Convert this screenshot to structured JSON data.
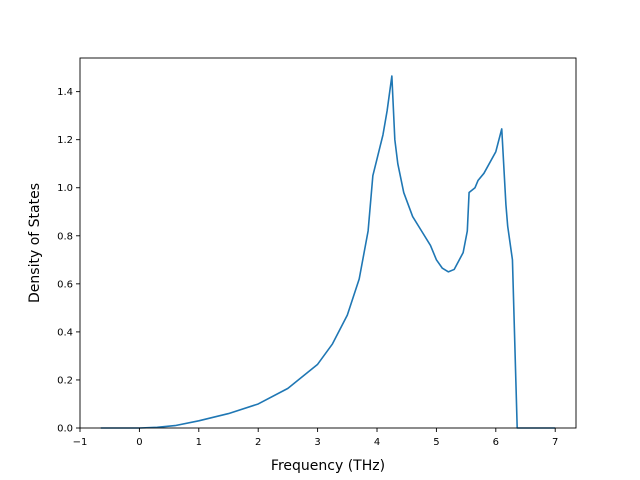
{
  "chart_data": {
    "type": "line",
    "title": "",
    "xlabel": "Frequency (THz)",
    "ylabel": "Density of States",
    "xlim": [
      -1.0,
      7.35
    ],
    "ylim": [
      0.0,
      1.54
    ],
    "grid": false,
    "legend": "none",
    "x_ticks": [
      "−1",
      "0",
      "1",
      "2",
      "3",
      "4",
      "5",
      "6",
      "7"
    ],
    "y_ticks": [
      "0.0",
      "0.2",
      "0.4",
      "0.6",
      "0.8",
      "1.0",
      "1.2",
      "1.4"
    ],
    "series": [
      {
        "color": "#1f77b4",
        "points": [
          [
            -0.65,
            0.0
          ],
          [
            0.0,
            0.0
          ],
          [
            0.3,
            0.003
          ],
          [
            0.6,
            0.01
          ],
          [
            1.0,
            0.03
          ],
          [
            1.5,
            0.06
          ],
          [
            2.0,
            0.1
          ],
          [
            2.5,
            0.165
          ],
          [
            3.0,
            0.265
          ],
          [
            3.25,
            0.35
          ],
          [
            3.5,
            0.47
          ],
          [
            3.7,
            0.62
          ],
          [
            3.85,
            0.82
          ],
          [
            3.93,
            1.05
          ],
          [
            4.0,
            1.12
          ],
          [
            4.1,
            1.22
          ],
          [
            4.17,
            1.32
          ],
          [
            4.25,
            1.465
          ],
          [
            4.3,
            1.2
          ],
          [
            4.35,
            1.1
          ],
          [
            4.45,
            0.98
          ],
          [
            4.6,
            0.88
          ],
          [
            4.75,
            0.82
          ],
          [
            4.9,
            0.76
          ],
          [
            5.0,
            0.7
          ],
          [
            5.1,
            0.665
          ],
          [
            5.2,
            0.65
          ],
          [
            5.3,
            0.66
          ],
          [
            5.45,
            0.73
          ],
          [
            5.52,
            0.82
          ],
          [
            5.55,
            0.98
          ],
          [
            5.65,
            1.0
          ],
          [
            5.7,
            1.03
          ],
          [
            5.8,
            1.06
          ],
          [
            6.0,
            1.15
          ],
          [
            6.1,
            1.245
          ],
          [
            6.17,
            0.93
          ],
          [
            6.2,
            0.84
          ],
          [
            6.28,
            0.7
          ],
          [
            6.36,
            0.0
          ],
          [
            7.0,
            0.0
          ]
        ]
      }
    ]
  }
}
